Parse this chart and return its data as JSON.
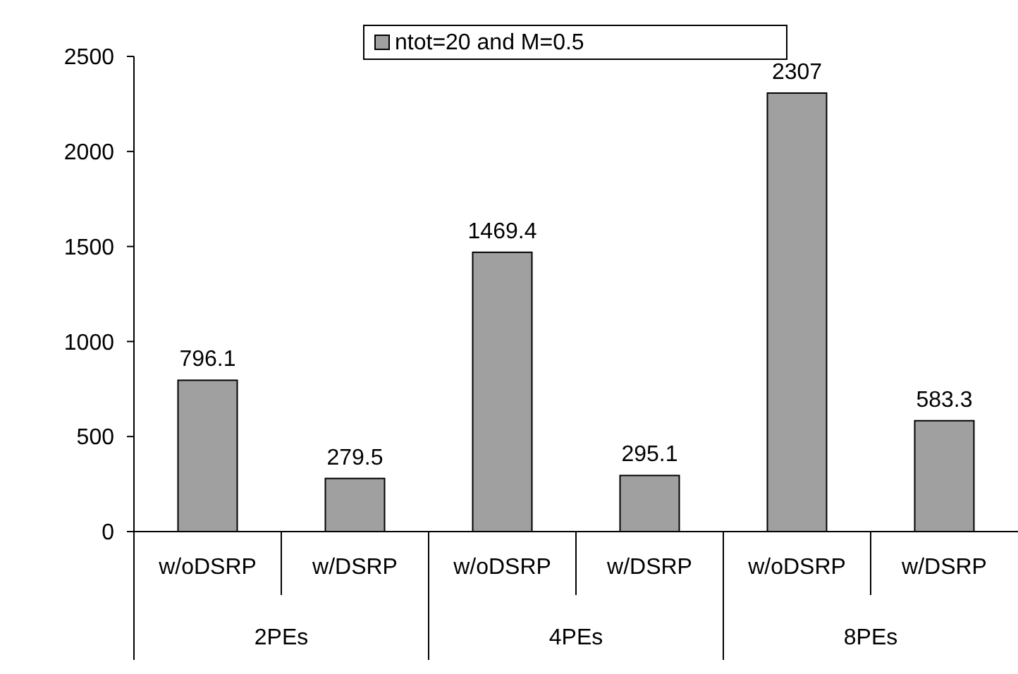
{
  "chart_data": {
    "type": "bar",
    "categories": [
      "w/oDSRP",
      "w/DSRP",
      "w/oDSRP",
      "w/DSRP",
      "w/oDSRP",
      "w/DSRP"
    ],
    "series": [
      {
        "name": "ntot=20 and M=0.5",
        "color": "#a0a0a0",
        "values": [
          796.1,
          279.5,
          1469.4,
          295.1,
          2307,
          583.3
        ]
      }
    ],
    "ylim": [
      0,
      2500
    ],
    "yticks": [
      0,
      500,
      1000,
      1500,
      2000,
      2500
    ],
    "grid": false,
    "legend": "top",
    "data_labels": true,
    "annotations": [
      "2PEs",
      "4PEs",
      "8PEs"
    ]
  }
}
